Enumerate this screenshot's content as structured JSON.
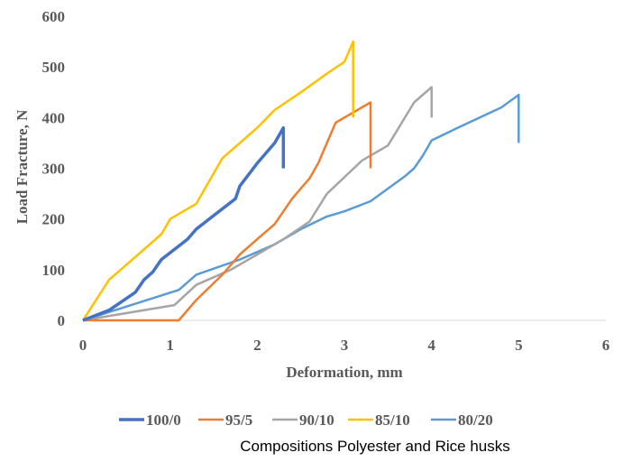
{
  "chart_data": {
    "type": "line",
    "title": "",
    "xlabel": "Deformation, mm",
    "ylabel": "Load Fracture, N",
    "xlim": [
      0,
      6
    ],
    "ylim": [
      0,
      600
    ],
    "x_ticks": [
      0,
      1,
      2,
      3,
      4,
      5,
      6
    ],
    "y_ticks": [
      0,
      100,
      200,
      300,
      400,
      500,
      600
    ],
    "grid": false,
    "legend_position": "bottom",
    "caption": "Compositions Polyester and Rice husks",
    "series": [
      {
        "name": "100/0",
        "color": "#4472C4",
        "points": [
          [
            0,
            0
          ],
          [
            0.3,
            20
          ],
          [
            0.6,
            55
          ],
          [
            0.7,
            80
          ],
          [
            0.8,
            95
          ],
          [
            0.9,
            120
          ],
          [
            1.2,
            160
          ],
          [
            1.3,
            180
          ],
          [
            1.6,
            220
          ],
          [
            1.75,
            240
          ],
          [
            1.8,
            265
          ],
          [
            2.0,
            310
          ],
          [
            2.2,
            350
          ],
          [
            2.3,
            380
          ],
          [
            2.3,
            300
          ]
        ]
      },
      {
        "name": "95/5",
        "color": "#ED7D31",
        "points": [
          [
            0,
            0
          ],
          [
            1.1,
            0
          ],
          [
            1.3,
            40
          ],
          [
            1.6,
            90
          ],
          [
            1.8,
            130
          ],
          [
            2.0,
            160
          ],
          [
            2.2,
            190
          ],
          [
            2.4,
            240
          ],
          [
            2.6,
            280
          ],
          [
            2.7,
            310
          ],
          [
            2.9,
            390
          ],
          [
            3.3,
            430
          ],
          [
            3.3,
            300
          ]
        ]
      },
      {
        "name": "90/10",
        "color": "#A5A5A5",
        "points": [
          [
            0,
            0
          ],
          [
            1.05,
            30
          ],
          [
            1.3,
            70
          ],
          [
            1.7,
            100
          ],
          [
            2.0,
            130
          ],
          [
            2.3,
            160
          ],
          [
            2.6,
            195
          ],
          [
            2.8,
            250
          ],
          [
            3.2,
            315
          ],
          [
            3.5,
            345
          ],
          [
            3.8,
            430
          ],
          [
            4.0,
            460
          ],
          [
            4.0,
            400
          ]
        ]
      },
      {
        "name": "85/10",
        "color": "#FFC000",
        "points": [
          [
            0,
            0
          ],
          [
            0.3,
            80
          ],
          [
            0.9,
            170
          ],
          [
            1.0,
            200
          ],
          [
            1.3,
            230
          ],
          [
            1.6,
            320
          ],
          [
            2.0,
            380
          ],
          [
            2.2,
            415
          ],
          [
            2.5,
            450
          ],
          [
            2.8,
            487
          ],
          [
            3.0,
            510
          ],
          [
            3.1,
            550
          ],
          [
            3.1,
            400
          ]
        ]
      },
      {
        "name": "80/20",
        "color": "#5B9BD5",
        "points": [
          [
            0,
            0
          ],
          [
            1.1,
            60
          ],
          [
            1.3,
            90
          ],
          [
            1.8,
            120
          ],
          [
            2.2,
            150
          ],
          [
            2.5,
            180
          ],
          [
            2.8,
            205
          ],
          [
            3.0,
            215
          ],
          [
            3.3,
            235
          ],
          [
            3.5,
            260
          ],
          [
            3.7,
            285
          ],
          [
            3.8,
            300
          ],
          [
            3.9,
            325
          ],
          [
            4.0,
            355
          ],
          [
            4.3,
            380
          ],
          [
            4.8,
            420
          ],
          [
            5.0,
            445
          ],
          [
            5.0,
            350
          ]
        ]
      }
    ]
  }
}
